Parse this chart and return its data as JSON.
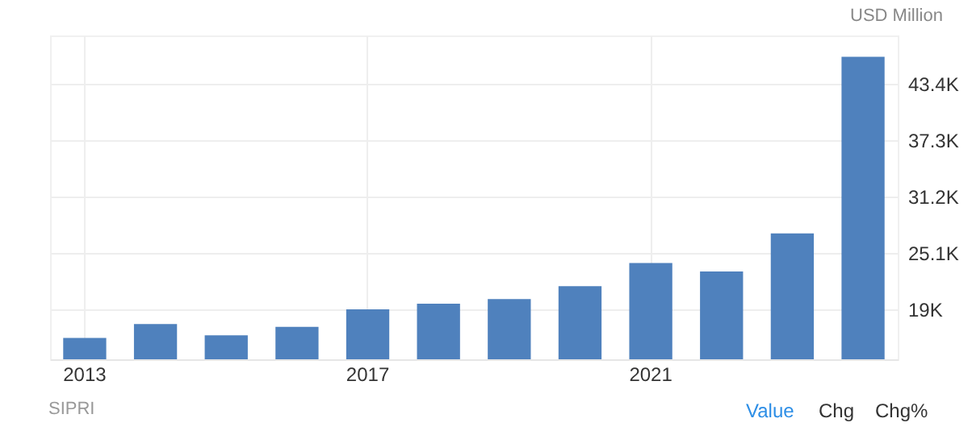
{
  "chart_data": {
    "type": "bar",
    "ylabel": "USD Million",
    "categories": [
      "2013",
      null,
      null,
      null,
      "2017",
      null,
      null,
      null,
      "2021",
      null,
      null,
      null
    ],
    "values": [
      15900,
      17400,
      16200,
      17100,
      19000,
      19600,
      20100,
      21500,
      24000,
      23100,
      27200,
      46300
    ],
    "color": "#4f81bd",
    "ylim": [
      13600,
      48600
    ],
    "yticks": [
      {
        "value": 19000,
        "label": "19K"
      },
      {
        "value": 25100,
        "label": "25.1K"
      },
      {
        "value": 31200,
        "label": "31.2K"
      },
      {
        "value": 37300,
        "label": "37.3K"
      },
      {
        "value": 43400,
        "label": "43.4K"
      }
    ],
    "grid": true,
    "annotations": [
      "SIPRI",
      "Value",
      "Chg",
      "Chg%"
    ]
  }
}
